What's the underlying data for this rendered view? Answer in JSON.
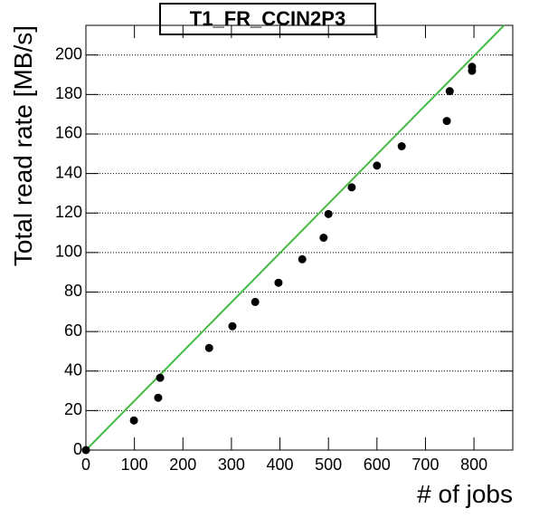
{
  "chart_data": {
    "type": "scatter",
    "title": "T1_FR_CCIN2P3",
    "x_label": "# of jobs",
    "y_label": "Total read rate [MB/s]",
    "x": [
      0,
      99,
      149,
      153,
      254,
      302,
      349,
      397,
      446,
      490,
      500,
      548,
      600,
      651,
      744,
      750,
      796,
      796
    ],
    "values": [
      0,
      15,
      26.5,
      36.6,
      51.7,
      62.7,
      75,
      84.7,
      96.6,
      107.5,
      119.5,
      133,
      144,
      153.8,
      166.6,
      181.7,
      194,
      192
    ],
    "color": "#000000",
    "fit": {
      "x": [
        0,
        862
      ],
      "values": [
        0,
        215
      ],
      "color": "#44bb44"
    },
    "xlim": [
      0,
      880
    ],
    "xticks": [
      0,
      100,
      200,
      300,
      400,
      500,
      600,
      700,
      800
    ],
    "ylim": [
      0,
      215
    ],
    "yticks": [
      0,
      20,
      40,
      60,
      80,
      100,
      120,
      140,
      160,
      180,
      200
    ],
    "ygrid": true
  }
}
